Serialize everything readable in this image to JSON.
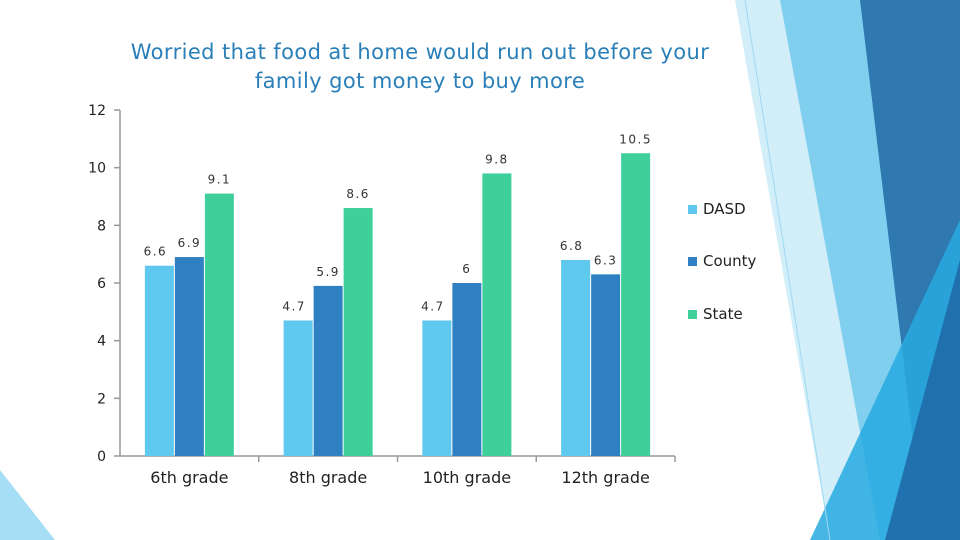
{
  "colors": {
    "DASD": "#5ec8ee",
    "County": "#2e80c3",
    "State": "#3ecf9a",
    "title": "#2a7fb8",
    "axis": "#999999"
  },
  "chart_data": {
    "type": "bar",
    "title": "Worried that food at home would run out before your family got money to buy more",
    "categories": [
      "6th grade",
      "8th grade",
      "10th grade",
      "12th grade"
    ],
    "series": [
      {
        "name": "DASD",
        "values": [
          6.6,
          4.7,
          4.7,
          6.8
        ],
        "labels": [
          "6.6",
          "4.7",
          "4.7",
          "6.8"
        ]
      },
      {
        "name": "County",
        "values": [
          6.9,
          5.9,
          6,
          6.3
        ],
        "labels": [
          "6.9",
          "5.9",
          "6",
          "6.3"
        ]
      },
      {
        "name": "State",
        "values": [
          9.1,
          8.6,
          9.8,
          10.5
        ],
        "labels": [
          "9.1",
          "8.6",
          "9.8",
          "10.5"
        ]
      }
    ],
    "yticks": [
      "0",
      "2",
      "4",
      "6",
      "8",
      "10",
      "12"
    ],
    "ylim": [
      0,
      12
    ],
    "xlabel": "",
    "ylabel": "",
    "grid": false,
    "legend_position": "right"
  }
}
